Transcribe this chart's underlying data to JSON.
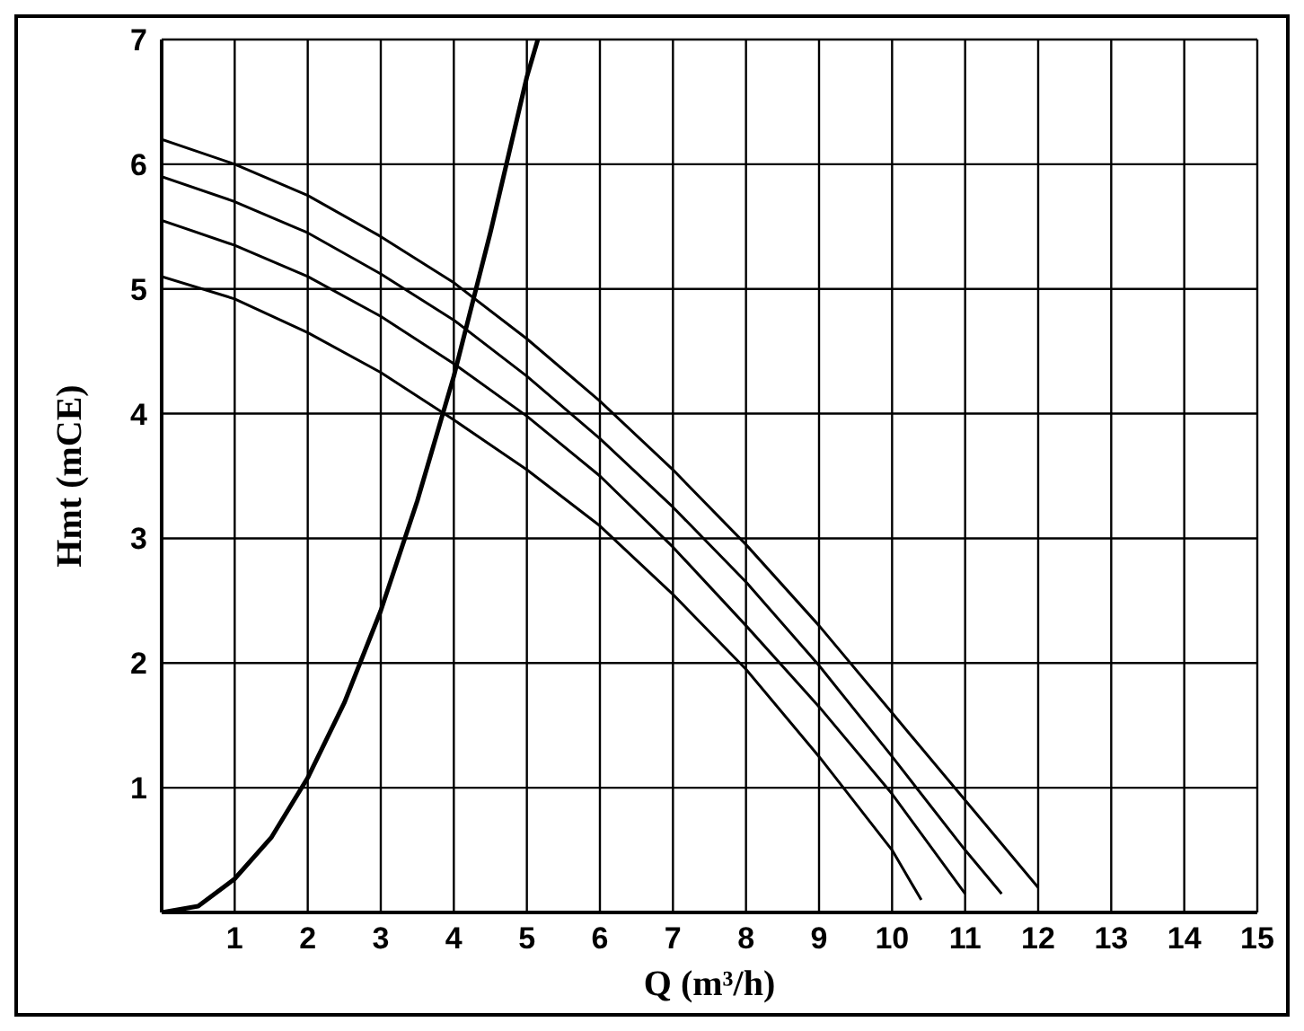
{
  "chart_data": {
    "type": "line",
    "xlabel": "Q (m³/h)",
    "ylabel": "Hmt (mCE)",
    "marker": "none",
    "grid": true,
    "legend": false,
    "xlim": [
      0,
      15
    ],
    "xticks": [
      {
        "value": 0,
        "label": null
      },
      1,
      2,
      3,
      4,
      5,
      6,
      7,
      8,
      9,
      10,
      11,
      12,
      13,
      14,
      15
    ],
    "ylim": [
      0,
      7
    ],
    "yticks": [
      {
        "value": 0,
        "label": null
      },
      1,
      2,
      3,
      4,
      5,
      6,
      7
    ],
    "series": [
      {
        "color": "#000000",
        "x": [
          0,
          1,
          2,
          3,
          4,
          5,
          6,
          7,
          8,
          9,
          10,
          11,
          12
        ],
        "values": [
          6.2,
          6.0,
          5.75,
          5.42,
          5.05,
          4.6,
          4.1,
          3.55,
          2.95,
          2.3,
          1.6,
          0.9,
          0.2
        ]
      },
      {
        "color": "#000000",
        "x": [
          0,
          1,
          2,
          3,
          4,
          5,
          6,
          7,
          8,
          9,
          10,
          11,
          11.5
        ],
        "values": [
          5.9,
          5.7,
          5.45,
          5.12,
          4.75,
          4.3,
          3.8,
          3.25,
          2.65,
          1.98,
          1.25,
          0.5,
          0.15
        ]
      },
      {
        "color": "#000000",
        "x": [
          0,
          1,
          2,
          3,
          4,
          5,
          6,
          7,
          8,
          9,
          10,
          11
        ],
        "values": [
          5.55,
          5.35,
          5.1,
          4.78,
          4.4,
          3.98,
          3.5,
          2.93,
          2.3,
          1.65,
          0.95,
          0.15
        ]
      },
      {
        "color": "#000000",
        "x": [
          0,
          1,
          2,
          3,
          4,
          5,
          6,
          7,
          8,
          9,
          10,
          10.4
        ],
        "values": [
          5.1,
          4.92,
          4.65,
          4.33,
          3.95,
          3.55,
          3.1,
          2.55,
          1.95,
          1.25,
          0.5,
          0.1
        ]
      },
      {
        "color": "#000000",
        "x": [
          0,
          0.5,
          1,
          1.5,
          2,
          2.5,
          3,
          3.5,
          4,
          4.5,
          5,
          5.15
        ],
        "values": [
          0,
          0.05,
          0.27,
          0.6,
          1.08,
          1.68,
          2.42,
          3.3,
          4.3,
          5.45,
          6.7,
          7
        ]
      }
    ]
  }
}
